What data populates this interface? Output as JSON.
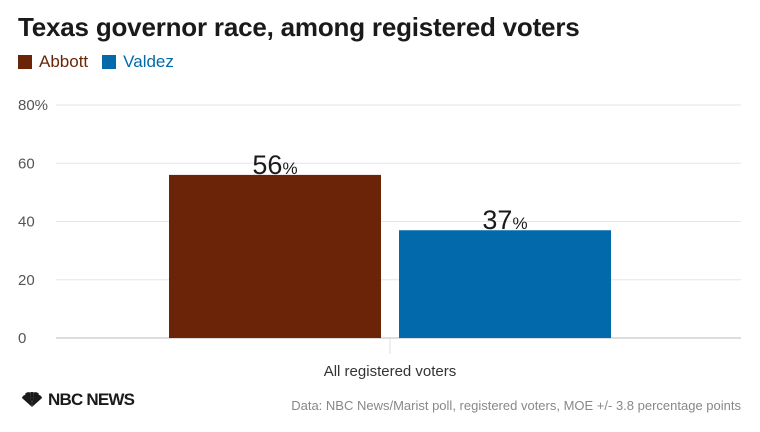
{
  "chart_data": {
    "type": "bar",
    "title": "Texas governor race, among registered voters",
    "categories": [
      "All registered voters"
    ],
    "series": [
      {
        "name": "Abbott",
        "values": [
          56
        ],
        "color": "#6b2407"
      },
      {
        "name": "Valdez",
        "values": [
          37
        ],
        "color": "#026aab"
      }
    ],
    "value_suffix": "%",
    "ylim": [
      0,
      80
    ],
    "yticks": [
      0,
      20,
      40,
      60,
      80
    ],
    "ytick_labels": [
      "0",
      "20",
      "40",
      "60",
      "80%"
    ],
    "grid": true,
    "legend_position": "top-left",
    "xlabel": "",
    "ylabel": ""
  },
  "source_note": "Data: NBC News/Marist poll, registered voters, MOE +/- 3.8 percentage points",
  "logo": {
    "text": "NBC NEWS",
    "icon": "peacock-icon"
  }
}
